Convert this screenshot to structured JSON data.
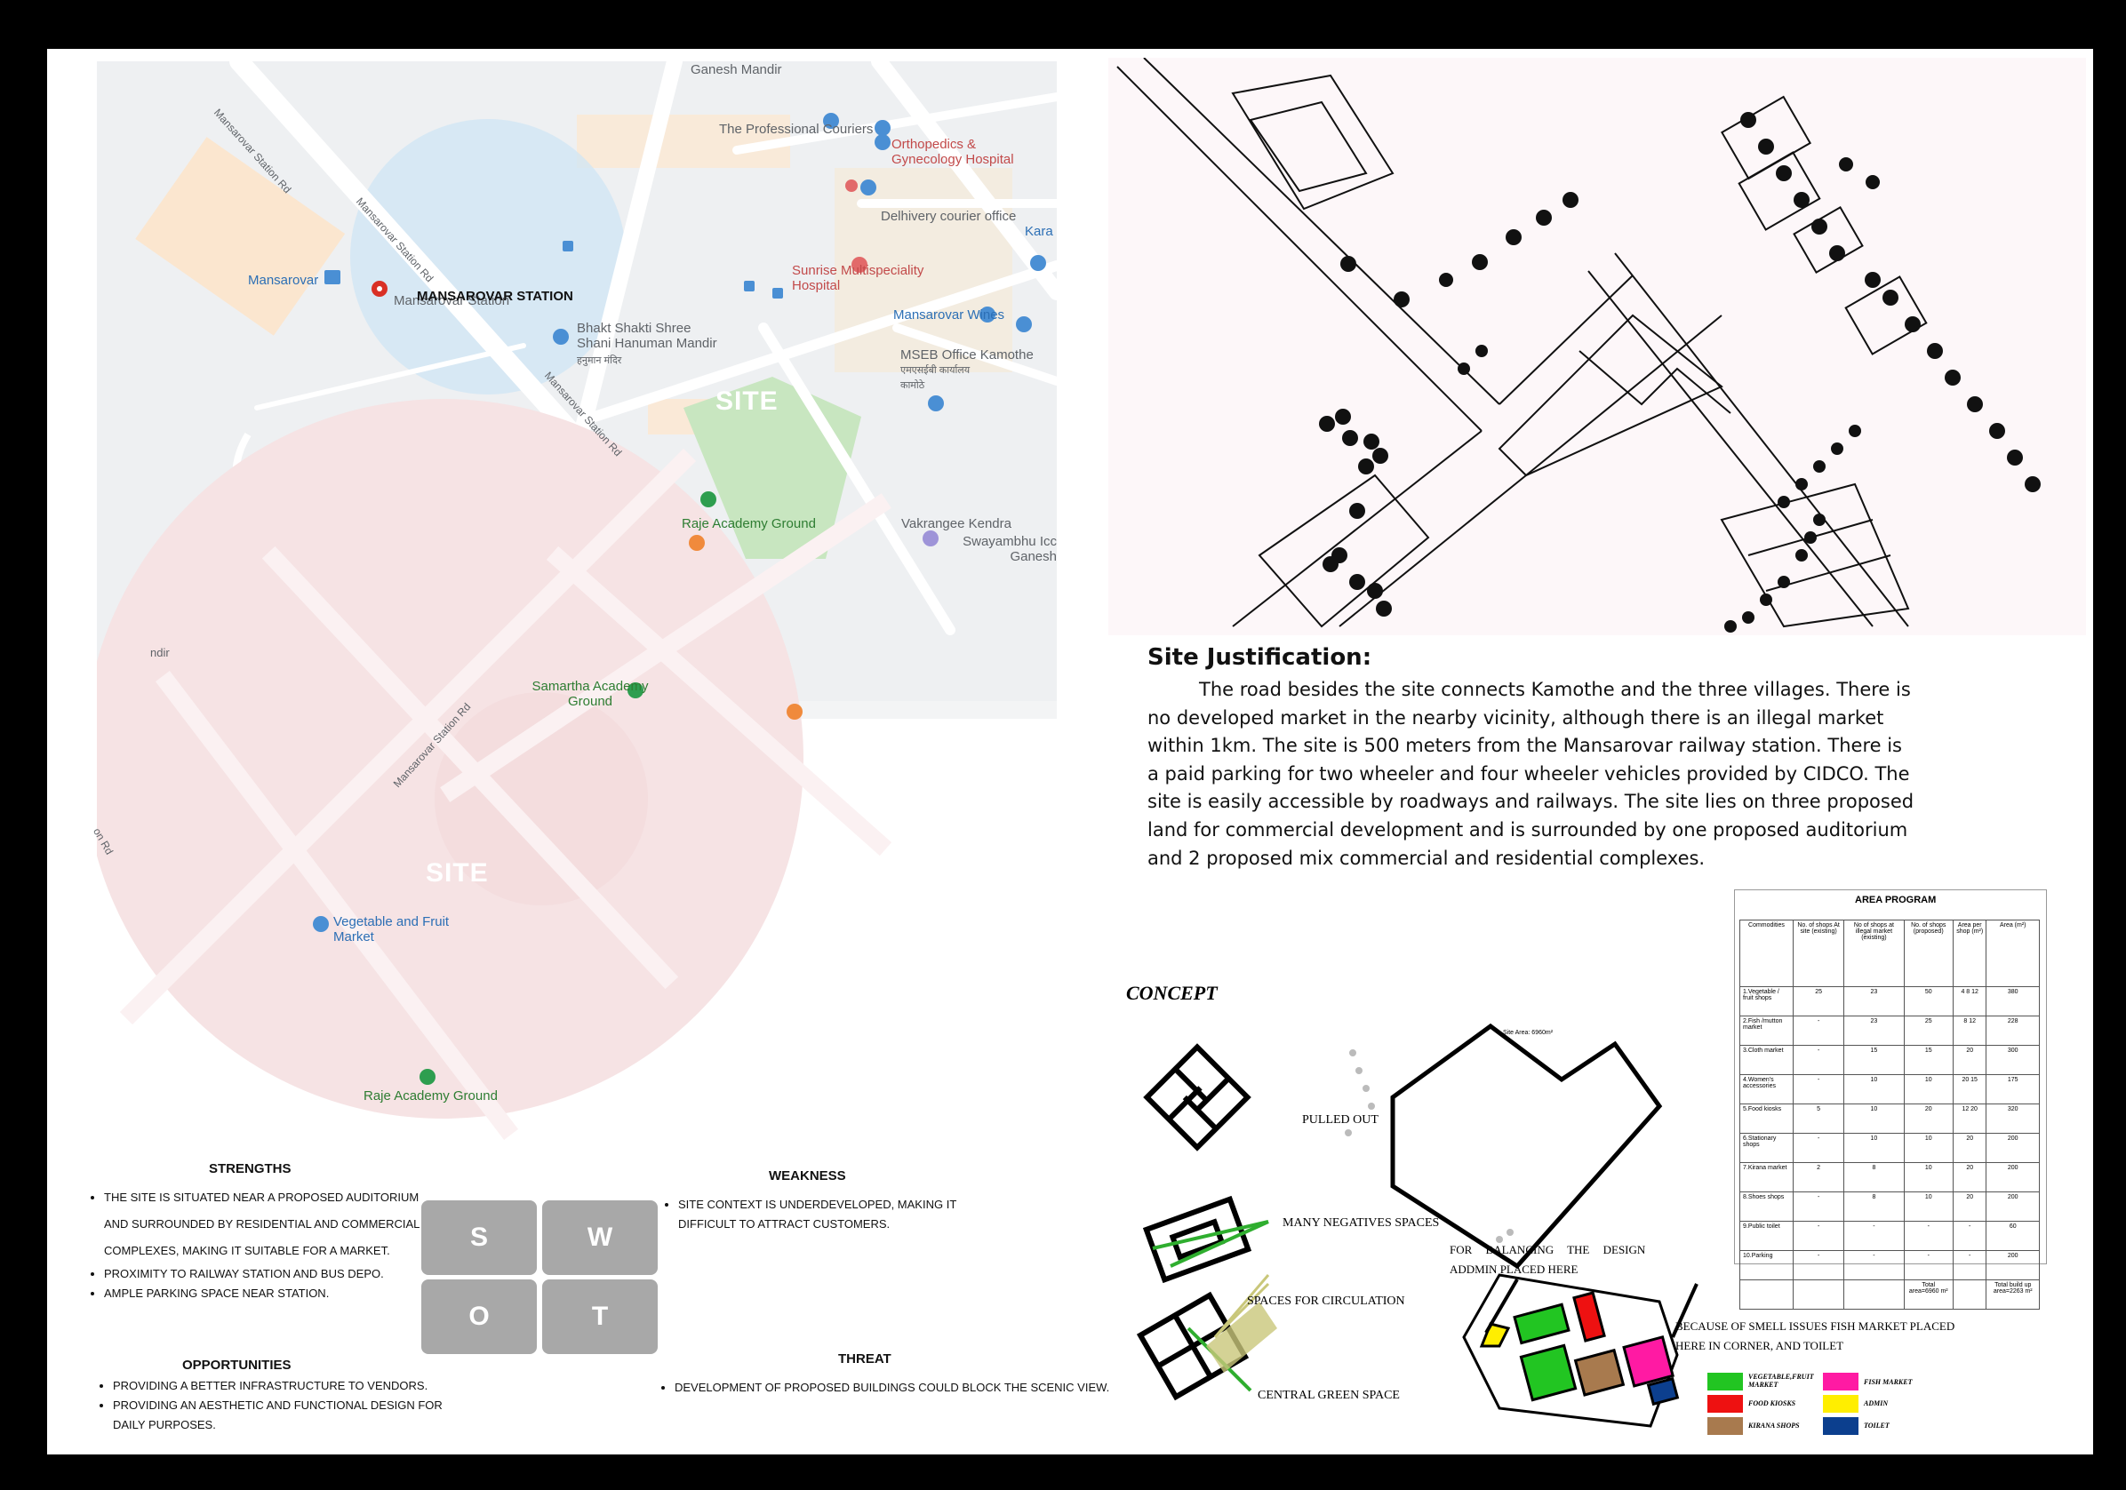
{
  "map": {
    "labels": {
      "ganesh_mandir": "Ganesh Mandir",
      "mansarovar_station_rd_1": "Mansarovar Station Rd",
      "mansarovar_station_rd_2": "Mansarovar Station Rd",
      "mansarovar_station_rd_3": "Mansarovar Station Rd",
      "mansarovar_station_rd_4": "Mansarovar Station Rd",
      "professional_couriers": "The Professional Couriers",
      "ortho_hospital": "Orthopedics & Gynecology Hospital",
      "delhivery": "Delhivery courier office",
      "sunrise_hospital": "Sunrise Multispeciality Hospital",
      "mansarovar": "Mansarovar",
      "mansarovar_station_pin": "Mansarovar Station",
      "mansarovar_station_bold": "MANSAROVAR STATION",
      "hanuman_mandir": "Bhakt Shakti Shree Shani Hanuman Mandir",
      "hanuman_mandir_hindi": "हनुमान मंदिर",
      "mansarovar_wines": "Mansarovar Wines",
      "mseb_office": "MSEB Office Kamothe",
      "mseb_office_hindi": "एमएसईबी कार्यालय कामोठे",
      "kara": "Kara",
      "raje_academy_ground_1": "Raje Academy Ground",
      "vakrangee": "Vakrangee Kendra",
      "swayambhu": "Swayambhu Icc Ganesh",
      "samartha": "Samartha Academy Ground",
      "vegetable_market": "Vegetable and Fruit Market",
      "raje_academy_ground_2": "Raje Academy Ground",
      "on_rd": "on Rd",
      "ndir": "ndir"
    },
    "site_label_1": "SITE",
    "site_label_2": "SITE"
  },
  "swot": {
    "strengths": {
      "title": "STRENGTHS",
      "items": [
        "THE SITE IS SITUATED NEAR A PROPOSED AUDITORIUM AND SURROUNDED BY RESIDENTIAL AND COMMERCIAL COMPLEXES, MAKING IT SUITABLE FOR A MARKET.",
        "PROXIMITY TO RAILWAY STATION AND BUS DEPO.",
        "AMPLE PARKING SPACE NEAR STATION."
      ]
    },
    "weakness": {
      "title": "WEAKNESS",
      "items": [
        "SITE CONTEXT IS UNDERDEVELOPED, MAKING IT DIFFICULT TO ATTRACT CUSTOMERS."
      ]
    },
    "opportunities": {
      "title": "OPPORTUNITIES",
      "items": [
        "PROVIDING A BETTER INFRASTRUCTURE TO VENDORS.",
        "PROVIDING AN AESTHETIC AND FUNCTIONAL DESIGN FOR DAILY PURPOSES."
      ]
    },
    "threat": {
      "title": "THREAT",
      "items": [
        "DEVELOPMENT OF PROPOSED BUILDINGS COULD BLOCK THE SCENIC VIEW."
      ]
    },
    "letters": [
      "S",
      "W",
      "O",
      "T"
    ]
  },
  "justification": {
    "title": "Site Justification:",
    "body": "The road besides the site connects Kamothe and the three villages. There is no developed market in the nearby vicinity, although there is an illegal market within 1km. The site is 500 meters from the Mansarovar railway station. There is a paid parking for two wheeler and four wheeler vehicles provided by CIDCO. The site is easily accessible by roadways and railways. The site lies on three proposed land for commercial development and is surrounded by one proposed auditorium and 2 proposed mix commercial and residential complexes."
  },
  "concept": {
    "title": "CONCEPT",
    "pulled_out": "PULLED OUT",
    "negative_spaces": "MANY NEGATIVES SPACES",
    "circulation": "SPACES FOR CIRCULATION",
    "green_space": "CENTRAL GREEN SPACE",
    "balancing": "FOR BALANCING THE DESIGN",
    "admin_placed": "ADDMIN PLACED HERE",
    "smell_issues": "BECAUSE OF SMELL ISSUES FISH MARKET PLACED",
    "corner_toilet": "HERE IN CORNER, AND TOILET",
    "site_area": "Site Area: 6960m²",
    "legend": [
      {
        "label": "VEGETABLE,FRUIT MARKET",
        "color": "#22c522"
      },
      {
        "label": "FISH MARKET",
        "color": "#ff1aa3"
      },
      {
        "label": "FOOD KIOSKS",
        "color": "#ee1111"
      },
      {
        "label": "ADMIN",
        "color": "#ffee00"
      },
      {
        "label": "KIRANA SHOPS",
        "color": "#a87a4e"
      },
      {
        "label": "TOILET",
        "color": "#0c3f8e"
      }
    ]
  },
  "area_program": {
    "title": "AREA PROGRAM",
    "headers": [
      "Commodities",
      "No. of shops At site (existing)",
      "No of shops at illegal market (existing)",
      "No. of shops (proposed)",
      "Area per shop (m²)",
      "Area (m²)"
    ],
    "rows": [
      [
        "1.Vegetable / fruit shops",
        "25",
        "23",
        "50",
        "4 8 12",
        "380"
      ],
      [
        "2.Fish /mutton market",
        "-",
        "23",
        "25",
        "8 12",
        "228"
      ],
      [
        "3.Cloth market",
        "-",
        "15",
        "15",
        "20",
        "300"
      ],
      [
        "4.Women's accessories",
        "-",
        "10",
        "10",
        "20 15",
        "175"
      ],
      [
        "5.Food kiosks",
        "5",
        "10",
        "20",
        "12 20",
        "320"
      ],
      [
        "6.Stationary shops",
        "-",
        "10",
        "10",
        "20",
        "200"
      ],
      [
        "7.Kirana market",
        "2",
        "8",
        "10",
        "20",
        "200"
      ],
      [
        "8.Shoes shops",
        "-",
        "8",
        "10",
        "20",
        "200"
      ],
      [
        "9.Public toilet",
        "-",
        "-",
        "-",
        "-",
        "60"
      ],
      [
        "10.Parking",
        "-",
        "-",
        "-",
        "-",
        "200"
      ],
      [
        "",
        "",
        "",
        "Total area=6960 m²",
        "",
        "Total build up area=2263 m²"
      ]
    ]
  }
}
